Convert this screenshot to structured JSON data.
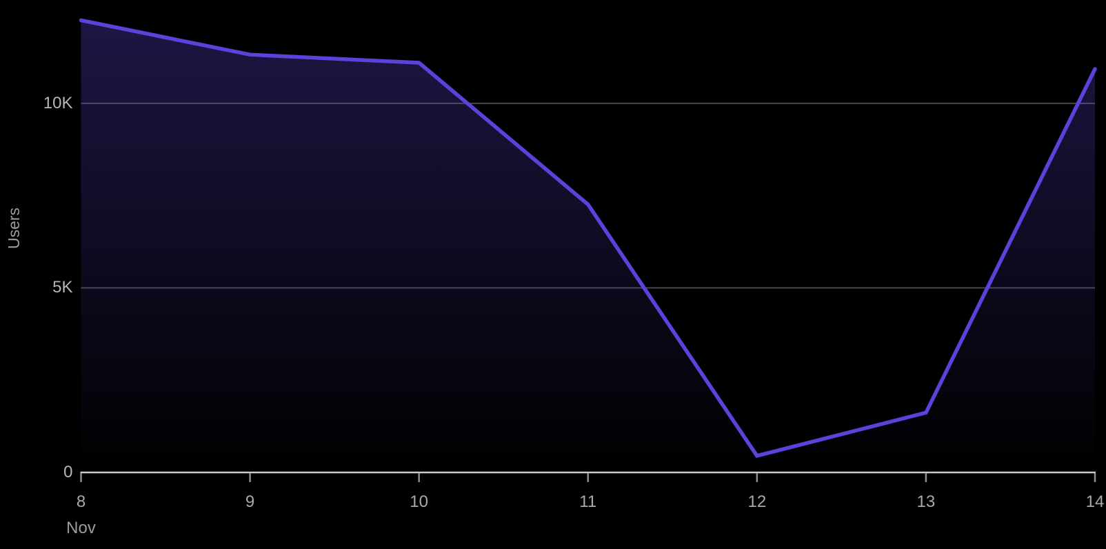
{
  "chart": {
    "y_axis_title": "Users",
    "month_label": "Nov",
    "colors": {
      "background": "#000000",
      "line": "#5a42da",
      "area_top": "rgba(98,70,220,0.32)",
      "area_bottom": "rgba(98,70,220,0)",
      "gridline": "rgba(255,255,255,0.28)",
      "axis_line": "#c9c9c9",
      "tick_mark": "#8f8f8f",
      "y_label_color": "#b6b6b6",
      "x_label_color": "#a9a9a9"
    }
  },
  "chart_data": {
    "type": "area",
    "title": "",
    "xlabel": "Nov",
    "ylabel": "Users",
    "x": [
      8,
      9,
      10,
      11,
      12,
      13,
      14
    ],
    "x_tick_labels": [
      "8",
      "9",
      "10",
      "11",
      "12",
      "13",
      "14"
    ],
    "series": [
      {
        "name": "Users",
        "values": [
          12250,
          11320,
          11100,
          7260,
          450,
          1620,
          10930
        ]
      }
    ],
    "ylim": [
      0,
      12800
    ],
    "yticks": [
      {
        "value": 0,
        "label": "0"
      },
      {
        "value": 5000,
        "label": "5K"
      },
      {
        "value": 10000,
        "label": "10K"
      }
    ],
    "grid": "horizontal",
    "legend": "none"
  }
}
